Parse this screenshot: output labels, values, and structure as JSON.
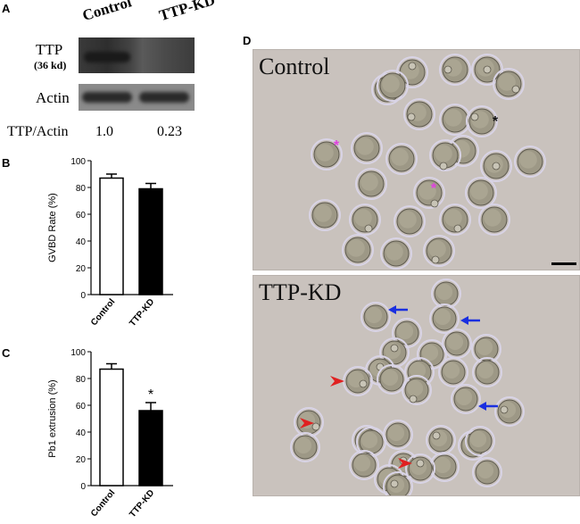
{
  "panel_a": {
    "letter": "A",
    "lane_labels": [
      "Control",
      "TTP-KD"
    ],
    "ttp_label": "TTP",
    "ttp_sub": "(36 kd)",
    "actin_label": "Actin",
    "ratio_label": "TTP/Actin",
    "ratio_values": [
      "1.0",
      "0.23"
    ]
  },
  "panel_b": {
    "letter": "B"
  },
  "panel_c": {
    "letter": "C"
  },
  "panel_d": {
    "letter": "D",
    "control_title": "Control",
    "kd_title": "TTP-KD"
  },
  "chart_data": [
    {
      "type": "bar",
      "categories": [
        "Control",
        "TTP-KD"
      ],
      "values": [
        87,
        79
      ],
      "errors": [
        3,
        4
      ],
      "fills": [
        "#ffffff",
        "#000000"
      ],
      "ylabel": "GVBD Rate (%)",
      "ylim": [
        0,
        100
      ],
      "yticks": [
        "0",
        "20",
        "40",
        "60",
        "80",
        "100"
      ],
      "annotations": []
    },
    {
      "type": "bar",
      "categories": [
        "Control",
        "TTP-KD"
      ],
      "values": [
        87,
        56
      ],
      "errors": [
        4,
        6
      ],
      "fills": [
        "#ffffff",
        "#000000"
      ],
      "ylabel": "Pb1 extrusion (%)",
      "ylim": [
        0,
        100
      ],
      "yticks": [
        "0",
        "20",
        "40",
        "60",
        "80",
        "100"
      ],
      "annotations": [
        "*"
      ]
    }
  ]
}
